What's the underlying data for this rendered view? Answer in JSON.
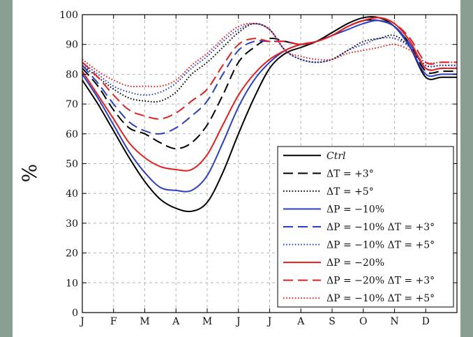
{
  "chart_data": {
    "type": "line",
    "title": "",
    "xlabel": "",
    "ylabel": "%",
    "ylim": [
      0,
      100
    ],
    "yticks": [
      0,
      10,
      20,
      30,
      40,
      50,
      60,
      70,
      80,
      90,
      100
    ],
    "xlim": [
      0,
      12
    ],
    "month_ticks": [
      "J",
      "F",
      "M",
      "A",
      "M",
      "J",
      "J",
      "A",
      "S",
      "O",
      "N",
      "D"
    ],
    "grid": true,
    "legend_position": "bottom-right",
    "x": [
      0,
      0.5,
      1,
      1.5,
      2,
      2.5,
      3,
      3.5,
      4,
      4.5,
      5,
      5.5,
      6,
      6.5,
      7,
      7.5,
      8,
      8.5,
      9,
      9.5,
      10,
      10.5,
      11,
      11.5,
      12
    ],
    "series": [
      {
        "name": "Ctrl",
        "label_italic": true,
        "color": "#000000",
        "style": "solid",
        "values": [
          78,
          70,
          61,
          52,
          44,
          38,
          35,
          34,
          37,
          47,
          60,
          72,
          82,
          87,
          89,
          91,
          94,
          97,
          99,
          99,
          96,
          89,
          79,
          79,
          79
        ]
      },
      {
        "name": "ΔT = +3°",
        "color": "#000000",
        "style": "dashed",
        "values": [
          82,
          76,
          68,
          62,
          60,
          57,
          55,
          57,
          63,
          73,
          84,
          89,
          92,
          91,
          90,
          91,
          93,
          96,
          98,
          98,
          96,
          90,
          81,
          81,
          81
        ]
      },
      {
        "name": "ΔT = +5°",
        "color": "#000000",
        "style": "dotted",
        "values": [
          83,
          79,
          75,
          72,
          71,
          71,
          74,
          80,
          84,
          89,
          94,
          97,
          95,
          88,
          85,
          84,
          85,
          88,
          91,
          92,
          93,
          89,
          83,
          83,
          83
        ]
      },
      {
        "name": "ΔP = −10%",
        "color": "#2a3fbf",
        "style": "solid",
        "values": [
          80,
          72,
          63,
          54,
          47,
          42,
          41,
          41,
          46,
          57,
          69,
          78,
          84,
          88,
          90,
          91,
          93,
          95,
          97,
          98,
          96,
          89,
          80,
          80,
          80
        ]
      },
      {
        "name": "ΔP = −10% ΔT = +3°",
        "color": "#2a3fbf",
        "style": "dashed",
        "values": [
          83,
          77,
          70,
          64,
          61,
          60,
          62,
          66,
          71,
          80,
          88,
          91,
          91,
          91,
          90,
          91,
          93,
          96,
          98,
          98,
          96,
          90,
          82,
          82,
          82
        ]
      },
      {
        "name": "ΔP = −10% ΔT = +5°",
        "color": "#2a3fbf",
        "style": "dotted",
        "values": [
          84,
          80,
          76,
          74,
          73,
          74,
          77,
          82,
          86,
          91,
          95,
          97,
          95,
          88,
          85,
          84,
          85,
          88,
          90,
          92,
          92,
          89,
          83,
          83,
          83
        ]
      },
      {
        "name": "ΔP = −20%",
        "color": "#e02020",
        "style": "solid",
        "values": [
          81,
          73,
          65,
          57,
          52,
          49,
          48,
          48,
          53,
          63,
          73,
          80,
          85,
          88,
          90,
          91,
          93,
          96,
          98,
          99,
          97,
          91,
          82,
          82,
          82
        ]
      },
      {
        "name": "ΔP = −20% ΔT = +3°",
        "color": "#e02020",
        "style": "dashed",
        "values": [
          84,
          79,
          73,
          68,
          66,
          65,
          67,
          71,
          75,
          83,
          90,
          92,
          91,
          91,
          90,
          91,
          93,
          96,
          98,
          99,
          97,
          92,
          84,
          84,
          84
        ]
      },
      {
        "name": "ΔP = −10% ΔT = +5°",
        "color": "#e02020",
        "style": "dotted",
        "values": [
          85,
          81,
          78,
          76,
          76,
          76,
          78,
          83,
          87,
          92,
          96,
          97,
          95,
          88,
          86,
          85,
          85,
          87,
          88,
          89,
          90,
          88,
          84,
          84,
          84
        ]
      }
    ]
  }
}
